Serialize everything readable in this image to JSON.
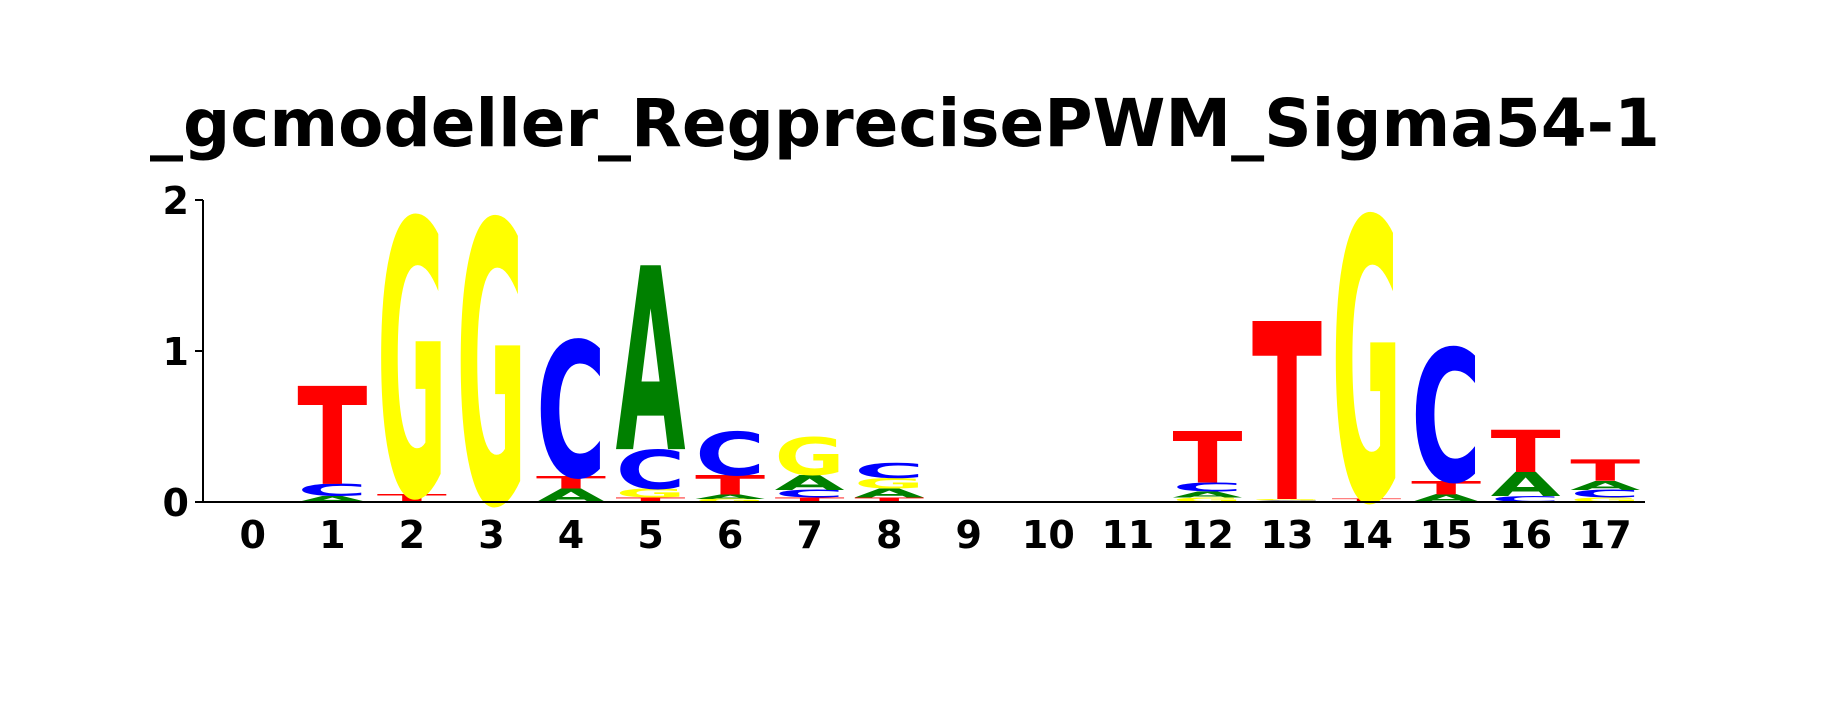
{
  "chart_data": {
    "type": "sequence-logo",
    "title": "_gcmodeller_RegprecisePWM_Sigma54-1",
    "ylim": [
      0,
      2
    ],
    "yticks": [
      "0",
      "1",
      "2"
    ],
    "positions": [
      "0",
      "1",
      "2",
      "3",
      "4",
      "5",
      "6",
      "7",
      "8",
      "9",
      "10",
      "11",
      "12",
      "13",
      "14",
      "15",
      "16",
      "17"
    ],
    "colors": {
      "A": "#008000",
      "C": "#0000ff",
      "G": "#ffff00",
      "T": "#ff0000"
    },
    "stacks": [
      [],
      [
        {
          "letter": "A",
          "height": 0.04
        },
        {
          "letter": "C",
          "height": 0.08
        },
        {
          "letter": "T",
          "height": 0.65
        }
      ],
      [
        {
          "letter": "T",
          "height": 0.05
        },
        {
          "letter": "G",
          "height": 1.83
        }
      ],
      [
        {
          "letter": "G",
          "height": 1.87
        }
      ],
      [
        {
          "letter": "A",
          "height": 0.09
        },
        {
          "letter": "T",
          "height": 0.08
        },
        {
          "letter": "C",
          "height": 0.9
        }
      ],
      [
        {
          "letter": "T",
          "height": 0.03
        },
        {
          "letter": "G",
          "height": 0.06
        },
        {
          "letter": "C",
          "height": 0.26
        },
        {
          "letter": "A",
          "height": 1.22
        }
      ],
      [
        {
          "letter": "G",
          "height": 0.02
        },
        {
          "letter": "A",
          "height": 0.03
        },
        {
          "letter": "T",
          "height": 0.13
        },
        {
          "letter": "C",
          "height": 0.29
        }
      ],
      [
        {
          "letter": "T",
          "height": 0.03
        },
        {
          "letter": "C",
          "height": 0.05
        },
        {
          "letter": "A",
          "height": 0.1
        },
        {
          "letter": "G",
          "height": 0.25
        }
      ],
      [
        {
          "letter": "T",
          "height": 0.03
        },
        {
          "letter": "A",
          "height": 0.06
        },
        {
          "letter": "G",
          "height": 0.07
        },
        {
          "letter": "C",
          "height": 0.1
        }
      ],
      [],
      [],
      [],
      [
        {
          "letter": "G",
          "height": 0.03
        },
        {
          "letter": "A",
          "height": 0.04
        },
        {
          "letter": "C",
          "height": 0.06
        },
        {
          "letter": "T",
          "height": 0.34
        }
      ],
      [
        {
          "letter": "C",
          "height": 0.01
        },
        {
          "letter": "G",
          "height": 0.01
        },
        {
          "letter": "T",
          "height": 1.18
        }
      ],
      [
        {
          "letter": "T",
          "height": 0.02
        },
        {
          "letter": "G",
          "height": 1.87
        }
      ],
      [
        {
          "letter": "A",
          "height": 0.05
        },
        {
          "letter": "T",
          "height": 0.09
        },
        {
          "letter": "C",
          "height": 0.88
        }
      ],
      [
        {
          "letter": "C",
          "height": 0.04
        },
        {
          "letter": "A",
          "height": 0.16
        },
        {
          "letter": "T",
          "height": 0.28
        }
      ],
      [
        {
          "letter": "G",
          "height": 0.03
        },
        {
          "letter": "C",
          "height": 0.05
        },
        {
          "letter": "A",
          "height": 0.06
        },
        {
          "letter": "T",
          "height": 0.14
        }
      ]
    ]
  }
}
